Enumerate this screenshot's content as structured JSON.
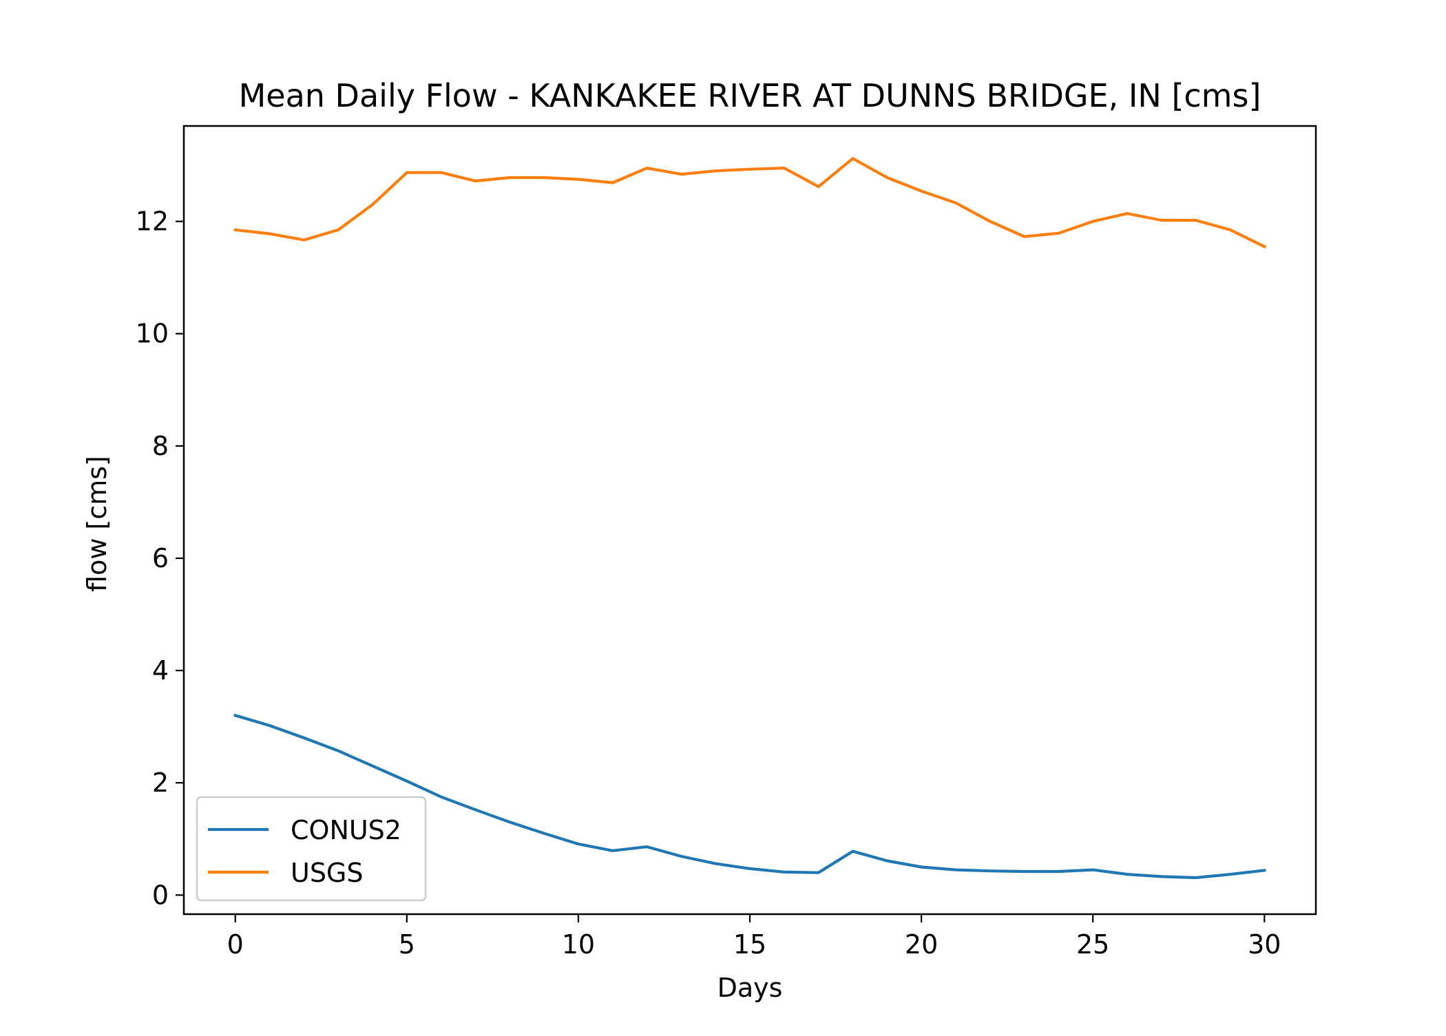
{
  "chart_data": {
    "type": "line",
    "title": "Mean Daily Flow - KANKAKEE RIVER AT DUNNS BRIDGE, IN [cms]",
    "xlabel": "Days",
    "ylabel": "flow [cms]",
    "xlim": [
      -1.5,
      31.5
    ],
    "ylim": [
      -0.34,
      13.7
    ],
    "xticks": [
      0,
      5,
      10,
      15,
      20,
      25,
      30
    ],
    "yticks": [
      0,
      2,
      4,
      6,
      8,
      10,
      12
    ],
    "grid": false,
    "legend": "lower-left",
    "x": [
      0,
      1,
      2,
      3,
      4,
      5,
      6,
      7,
      8,
      9,
      10,
      11,
      12,
      13,
      14,
      15,
      16,
      17,
      18,
      19,
      20,
      21,
      22,
      23,
      24,
      25,
      26,
      27,
      28,
      29,
      30
    ],
    "series": [
      {
        "name": "CONUS2",
        "color": "#1f77b4",
        "values": [
          3.2,
          3.02,
          2.8,
          2.57,
          2.3,
          2.03,
          1.75,
          1.52,
          1.3,
          1.1,
          0.91,
          0.79,
          0.86,
          0.69,
          0.56,
          0.47,
          0.41,
          0.4,
          0.78,
          0.61,
          0.5,
          0.45,
          0.43,
          0.42,
          0.42,
          0.45,
          0.37,
          0.33,
          0.31,
          0.37,
          0.44
        ]
      },
      {
        "name": "USGS",
        "color": "#ff7f0e",
        "values": [
          11.85,
          11.78,
          11.67,
          11.85,
          12.3,
          12.87,
          12.87,
          12.72,
          12.78,
          12.78,
          12.75,
          12.69,
          12.95,
          12.84,
          12.9,
          12.93,
          12.95,
          12.62,
          13.12,
          12.78,
          12.54,
          12.33,
          12.0,
          11.73,
          11.79,
          12.0,
          12.14,
          12.02,
          12.02,
          11.85,
          11.55
        ]
      }
    ]
  }
}
